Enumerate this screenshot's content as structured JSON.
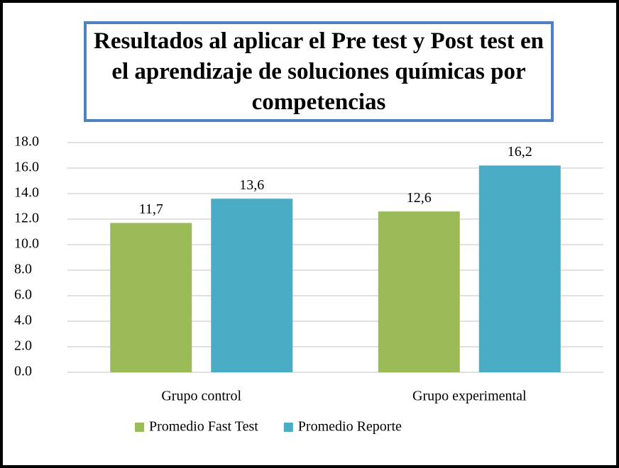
{
  "chart_data": {
    "type": "bar",
    "title": "Resultados al aplicar el Pre test y Post test en el aprendizaje de soluciones químicas por competencias",
    "categories": [
      "Grupo control",
      "Grupo experimental"
    ],
    "series": [
      {
        "name": "Promedio Fast Test",
        "color": "#9bbb59",
        "values": [
          11.7,
          12.6
        ],
        "value_labels": [
          "11,7",
          "12,6"
        ]
      },
      {
        "name": "Promedio Reporte",
        "color": "#4bacc6",
        "values": [
          13.6,
          16.2
        ],
        "value_labels": [
          "13,6",
          "16,2"
        ]
      }
    ],
    "ylim": [
      0,
      18
    ],
    "yticks": [
      {
        "value": 0,
        "label": "0.0"
      },
      {
        "value": 2,
        "label": "2.0"
      },
      {
        "value": 4,
        "label": "4.0"
      },
      {
        "value": 6,
        "label": "6.0"
      },
      {
        "value": 8,
        "label": "8.0"
      },
      {
        "value": 10,
        "label": "10.0"
      },
      {
        "value": 12,
        "label": "12.0"
      },
      {
        "value": 14,
        "label": "14.0"
      },
      {
        "value": 16,
        "label": "16.0"
      },
      {
        "value": 18,
        "label": "18.0"
      }
    ],
    "grid": true,
    "legend": "bottom"
  }
}
